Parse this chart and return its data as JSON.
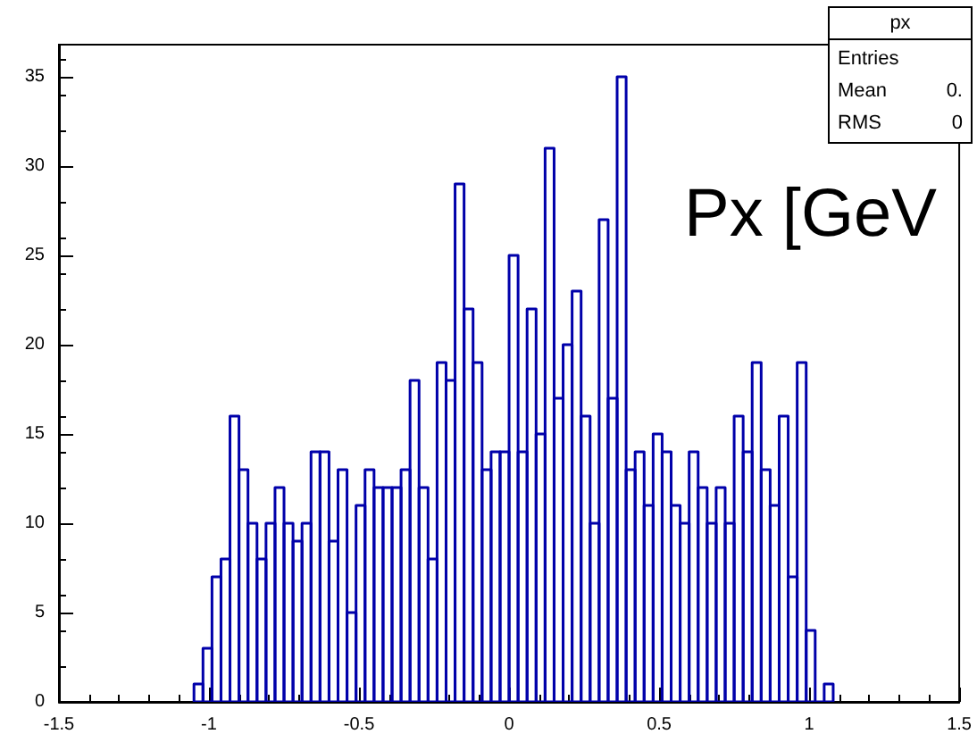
{
  "chart_data": {
    "type": "histogram",
    "title": "Px [GeV",
    "annotations": [
      "px",
      "Entries",
      "Mean",
      "0.",
      "RMS",
      "0"
    ],
    "bins": [
      -1.05,
      -1.02,
      -0.99,
      -0.96,
      -0.93,
      -0.9,
      -0.87,
      -0.84,
      -0.81,
      -0.78,
      -0.75,
      -0.72,
      -0.69,
      -0.66,
      -0.63,
      -0.6,
      -0.57,
      -0.54,
      -0.51,
      -0.48,
      -0.45,
      -0.42,
      -0.39,
      -0.36,
      -0.33,
      -0.3,
      -0.27,
      -0.24,
      -0.21,
      -0.18,
      -0.15,
      -0.12,
      -0.09,
      -0.06,
      -0.03,
      0,
      0.03,
      0.06,
      0.09,
      0.12,
      0.15,
      0.18,
      0.21,
      0.24,
      0.27,
      0.3,
      0.33,
      0.36,
      0.39,
      0.42,
      0.45,
      0.48,
      0.51,
      0.54,
      0.57,
      0.6,
      0.63,
      0.66,
      0.69,
      0.72,
      0.75,
      0.78,
      0.81,
      0.84,
      0.87,
      0.9,
      0.93,
      0.96,
      0.99,
      1.02,
      1.05,
      1.08
    ],
    "values": [
      1,
      3,
      7,
      8,
      16,
      13,
      10,
      8,
      10,
      12,
      10,
      9,
      10,
      14,
      14,
      9,
      13,
      5,
      11,
      13,
      12,
      12,
      12,
      13,
      18,
      12,
      8,
      19,
      18,
      29,
      22,
      19,
      13,
      14,
      14,
      25,
      14,
      22,
      15,
      31,
      17,
      20,
      23,
      16,
      10,
      27,
      17,
      35,
      13,
      14,
      11,
      15,
      14,
      11,
      10,
      14,
      12,
      10,
      12,
      10,
      16,
      14,
      19,
      13,
      11,
      16,
      7,
      19,
      4,
      0,
      1
    ],
    "color": "#0000aa",
    "xlim": [
      -1.5,
      1.5
    ],
    "xticks": [
      -1.5,
      -1,
      -0.5,
      0,
      0.5,
      1,
      1.5
    ],
    "ylim": [
      0,
      36.8
    ],
    "yticks": [
      0,
      5,
      10,
      15,
      20,
      25,
      30,
      35
    ],
    "legend": false,
    "grid": false
  }
}
